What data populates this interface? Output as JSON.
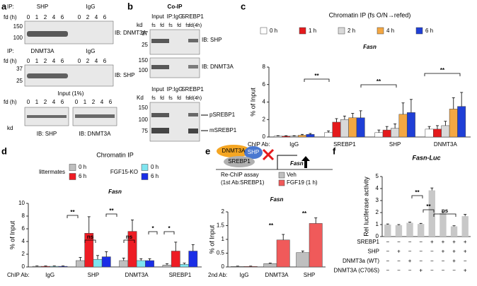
{
  "panels": [
    "a",
    "b",
    "c",
    "d",
    "e",
    "f"
  ],
  "blot_a": {
    "row1": {
      "ip": "IP:",
      "left": "SHP",
      "right": "IgG",
      "fd": "fd (h)",
      "lanes": [
        "0",
        "1",
        "2",
        "4",
        "6",
        "0",
        "2",
        "4",
        "6"
      ],
      "markers": [
        "150",
        "100"
      ],
      "ib": "IB: DNMT3A"
    },
    "row2": {
      "ip": "IP:",
      "left": "DNMT3A",
      "right": "IgG",
      "fd": "fd (h)",
      "lanes": [
        "0",
        "1",
        "2",
        "4",
        "6",
        "0",
        "2",
        "4",
        "6"
      ],
      "markers": [
        "37",
        "25"
      ],
      "ib": "IB: SHP"
    },
    "input": {
      "title": "Input (1%)",
      "fd": "fd (h)",
      "lanes": [
        "0",
        "1",
        "2",
        "4",
        "6",
        "0",
        "1",
        "2",
        "4",
        "6"
      ],
      "kd": "kd",
      "ib_left": "IB: SHP",
      "ib_right": "IB: DNMT3A"
    }
  },
  "blot_b": {
    "title": "Co-IP",
    "top": {
      "headers": [
        "Input",
        "IP:IgG",
        "SREBP1"
      ],
      "kd": "kd",
      "lanes": [
        "fs",
        "fd",
        "fs",
        "fd",
        "fs",
        "fd(4h)"
      ],
      "markers1": [
        "37",
        "25"
      ],
      "ib1": "IB: SHP",
      "markers2": [
        "150",
        "100"
      ],
      "ib2": "IB: DNMT3A"
    },
    "bottom": {
      "headers": [
        "Input",
        "IP:IgG",
        "SREBP1"
      ],
      "kd": "Kd",
      "lanes": [
        "fs",
        "fd",
        "fs",
        "fd",
        "fs",
        "fd(4h)"
      ],
      "markers": [
        "150",
        "100",
        "75"
      ],
      "bands": [
        "pSREBP1",
        "mSREBP1"
      ]
    }
  },
  "diagram_e": {
    "proteins": [
      "DNMT3A",
      "SHP",
      "SREBP1"
    ],
    "gene": "Fasn",
    "assay": "Re-ChIP assay",
    "first_ab": "(1st Ab:SREBP1)"
  },
  "chart_data": [
    {
      "type": "bar",
      "title": "Chromatin IP (fs O/N→refed)",
      "subtitle": "Fasn",
      "ylabel": "% of Input",
      "xlabel": "ChIP Ab:",
      "categories": [
        "IgG",
        "SREBP1",
        "SHP",
        "DNMT3A"
      ],
      "series": [
        {
          "name": "0 h",
          "color": "#ffffff",
          "values": [
            0.1,
            0.5,
            0.5,
            0.9
          ],
          "errors": [
            0.05,
            0.2,
            0.3,
            0.3
          ]
        },
        {
          "name": "1 h",
          "color": "#e41a1c",
          "values": [
            0.1,
            1.7,
            0.8,
            0.9
          ],
          "errors": [
            0.05,
            0.4,
            0.4,
            0.4
          ]
        },
        {
          "name": "2 h",
          "color": "#d9d9d9",
          "values": [
            0.1,
            2.0,
            1.0,
            1.3
          ],
          "errors": [
            0.05,
            0.4,
            0.5,
            0.5
          ]
        },
        {
          "name": "4 h",
          "color": "#f4a742",
          "values": [
            0.2,
            2.2,
            2.6,
            3.2
          ],
          "errors": [
            0.1,
            0.5,
            1.3,
            1.3
          ]
        },
        {
          "name": "6 h",
          "color": "#1f3fd6",
          "values": [
            0.3,
            2.2,
            2.8,
            3.5
          ],
          "errors": [
            0.1,
            0.8,
            1.5,
            1.6
          ]
        }
      ],
      "ylim": [
        0,
        8
      ],
      "yticks": [
        0,
        2,
        4,
        6,
        8
      ],
      "annotations": [
        "**",
        "**",
        "**"
      ]
    },
    {
      "type": "bar",
      "title": "Chromatin IP",
      "subtitle": "Fasn",
      "ylabel": "% of Input",
      "xlabel": "ChIP Ab:",
      "legend_groups": [
        "littermates",
        "FGF15-KO"
      ],
      "categories": [
        "IgG",
        "SHP",
        "DNMT3A",
        "SREBP1"
      ],
      "series": [
        {
          "name": "0 h",
          "color": "#bfbfbf",
          "values": [
            0.1,
            1.0,
            1.0,
            0.3
          ],
          "errors": [
            0.05,
            0.5,
            0.4,
            0.2
          ]
        },
        {
          "name": "6 h",
          "color": "#ee1c24",
          "values": [
            0.1,
            5.3,
            5.6,
            2.5
          ],
          "errors": [
            0.05,
            2.6,
            1.8,
            1.4
          ]
        },
        {
          "name": "0 h",
          "color": "#7fe5f0",
          "values": [
            0.1,
            1.2,
            1.0,
            0.4
          ],
          "errors": [
            0.05,
            0.6,
            0.3,
            0.2
          ]
        },
        {
          "name": "6 h",
          "color": "#1a2ee6",
          "values": [
            0.1,
            1.6,
            1.0,
            2.5
          ],
          "errors": [
            0.05,
            0.8,
            0.3,
            1.0
          ]
        }
      ],
      "ylim": [
        0,
        10
      ],
      "yticks": [
        0,
        2,
        4,
        6,
        8,
        10
      ],
      "annotations": [
        "**",
        "ns",
        "**",
        "ns",
        "*",
        "*"
      ]
    },
    {
      "type": "bar",
      "subtitle": "Fasn",
      "ylabel": "% of Input",
      "xlabel": "2nd Ab:",
      "categories": [
        "IgG",
        "DNMT3A",
        "SHP"
      ],
      "series": [
        {
          "name": "Veh",
          "color": "#bfbfbf",
          "values": [
            0.02,
            0.12,
            0.52
          ],
          "errors": [
            0.01,
            0.02,
            0.06
          ]
        },
        {
          "name": "FGF19 (1 h)",
          "color": "#f05a5a",
          "values": [
            0.02,
            0.98,
            1.58
          ],
          "errors": [
            0.01,
            0.2,
            0.2
          ]
        }
      ],
      "ylim": [
        0,
        2
      ],
      "yticks": [
        0,
        0.5,
        1,
        1.5,
        2
      ],
      "annotations": [
        "**",
        "**"
      ]
    },
    {
      "type": "bar",
      "title": "Fasn-Luc",
      "ylabel": "Rel luciferase activity",
      "color": "#c8c8c8",
      "values": [
        1.0,
        0.95,
        1.15,
        1.05,
        3.85,
        1.95,
        0.85,
        1.7
      ],
      "errors": [
        0.05,
        0.05,
        0.05,
        0.05,
        0.2,
        0.1,
        0.05,
        0.15
      ],
      "ylim": [
        0,
        5
      ],
      "yticks": [
        0,
        1,
        2,
        3,
        4,
        5
      ],
      "annotations": [
        "**",
        "**",
        "ns"
      ],
      "conditions": [
        {
          "label": "SREBP1",
          "marks": [
            "−",
            "−",
            "−",
            "−",
            "+",
            "+",
            "+",
            "+"
          ]
        },
        {
          "label": "SHP",
          "marks": [
            "−",
            "+",
            "−",
            "−",
            "−",
            "+",
            "+",
            "+"
          ]
        },
        {
          "label": "DNMT3a (WT)",
          "marks": [
            "−",
            "−",
            "+",
            "−",
            "−",
            "−",
            "+",
            "−"
          ]
        },
        {
          "label": "DNMT3A (C706S)",
          "marks": [
            "−",
            "−",
            "−",
            "+",
            "−",
            "−",
            "−",
            "+"
          ]
        }
      ]
    }
  ]
}
